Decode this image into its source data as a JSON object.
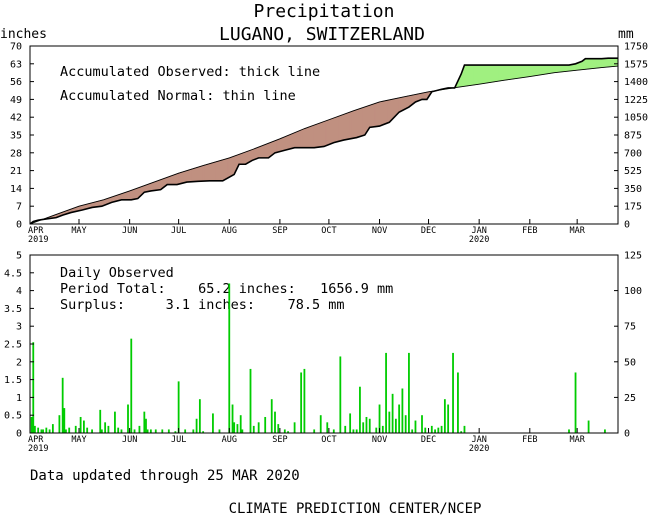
{
  "header": {
    "title": "Precipitation",
    "subtitle": "LUGANO, SWITZERLAND"
  },
  "footer": {
    "updated": "Data updated through 25 MAR 2020",
    "credit": "CLIMATE PREDICTION CENTER/NCEP"
  },
  "chart_data": [
    {
      "type": "area",
      "id": "accumulated",
      "left_unit": "inches",
      "right_unit": "mm",
      "ylim": [
        0,
        70
      ],
      "yticks": [
        0,
        7,
        14,
        21,
        28,
        35,
        42,
        49,
        56,
        63,
        70
      ],
      "right_yticks": [
        0,
        175,
        350,
        525,
        700,
        875,
        1050,
        1225,
        1400,
        1575,
        1750
      ],
      "xlim_days": [
        0,
        360
      ],
      "x_ticks": [
        {
          "label": "APR",
          "sub": "2019",
          "day": 0
        },
        {
          "label": "MAY",
          "sub": "",
          "day": 30
        },
        {
          "label": "JUN",
          "sub": "",
          "day": 61
        },
        {
          "label": "JUL",
          "sub": "",
          "day": 91
        },
        {
          "label": "AUG",
          "sub": "",
          "day": 122
        },
        {
          "label": "SEP",
          "sub": "",
          "day": 153
        },
        {
          "label": "OCT",
          "sub": "",
          "day": 183
        },
        {
          "label": "NOV",
          "sub": "",
          "day": 214
        },
        {
          "label": "DEC",
          "sub": "",
          "day": 244
        },
        {
          "label": "JAN",
          "sub": "2020",
          "day": 275
        },
        {
          "label": "FEB",
          "sub": "",
          "day": 306
        },
        {
          "label": "MAR",
          "sub": "",
          "day": 335
        }
      ],
      "annotations": [
        "Accumulated Observed: thick line",
        "Accumulated Normal: thin line"
      ],
      "surplus_color": "#a0f080",
      "deficit_color": "#c09080",
      "series": [
        {
          "name": "Accumulated Normal",
          "points": [
            [
              0,
              0
            ],
            [
              15,
              3.5
            ],
            [
              30,
              7
            ],
            [
              45,
              9.5
            ],
            [
              61,
              13
            ],
            [
              76,
              16.5
            ],
            [
              91,
              20
            ],
            [
              106,
              23
            ],
            [
              122,
              26
            ],
            [
              137,
              29.5
            ],
            [
              153,
              33.5
            ],
            [
              168,
              37.5
            ],
            [
              183,
              41
            ],
            [
              198,
              44.5
            ],
            [
              214,
              48
            ],
            [
              229,
              50
            ],
            [
              244,
              52
            ],
            [
              259,
              53.5
            ],
            [
              275,
              55
            ],
            [
              290,
              56.5
            ],
            [
              306,
              58
            ],
            [
              321,
              59.5
            ],
            [
              335,
              60.5
            ],
            [
              350,
              61.5
            ],
            [
              360,
              62.1
            ]
          ]
        },
        {
          "name": "Accumulated Observed",
          "points": [
            [
              0,
              0
            ],
            [
              2,
              1
            ],
            [
              5,
              1.5
            ],
            [
              10,
              2
            ],
            [
              16,
              2.5
            ],
            [
              20,
              3.5
            ],
            [
              25,
              4.5
            ],
            [
              32,
              5.5
            ],
            [
              38,
              6.5
            ],
            [
              44,
              7
            ],
            [
              50,
              8.5
            ],
            [
              56,
              9.5
            ],
            [
              62,
              9.5
            ],
            [
              66,
              10
            ],
            [
              70,
              12.5
            ],
            [
              74,
              13
            ],
            [
              80,
              13.5
            ],
            [
              84,
              15.5
            ],
            [
              90,
              15.5
            ],
            [
              96,
              16.5
            ],
            [
              103,
              16.8
            ],
            [
              110,
              17
            ],
            [
              118,
              17
            ],
            [
              125,
              19.5
            ],
            [
              128,
              23.5
            ],
            [
              132,
              23.5
            ],
            [
              136,
              25
            ],
            [
              140,
              26
            ],
            [
              146,
              26
            ],
            [
              150,
              28
            ],
            [
              156,
              29
            ],
            [
              162,
              30
            ],
            [
              168,
              30
            ],
            [
              174,
              30
            ],
            [
              180,
              30.5
            ],
            [
              186,
              32
            ],
            [
              192,
              33
            ],
            [
              196,
              33.5
            ],
            [
              200,
              34
            ],
            [
              205,
              35
            ],
            [
              208,
              38
            ],
            [
              214,
              38.5
            ],
            [
              220,
              40
            ],
            [
              226,
              44
            ],
            [
              232,
              46
            ],
            [
              236,
              48
            ],
            [
              240,
              49
            ],
            [
              243,
              49
            ],
            [
              246,
              52
            ],
            [
              252,
              53
            ],
            [
              256,
              53.5
            ],
            [
              260,
              53.5
            ],
            [
              264,
              59
            ],
            [
              266,
              62.5
            ],
            [
              275,
              62.5
            ],
            [
              290,
              62.5
            ],
            [
              306,
              62.5
            ],
            [
              320,
              62.5
            ],
            [
              330,
              62.5
            ],
            [
              334,
              63
            ],
            [
              338,
              64
            ],
            [
              340,
              65
            ],
            [
              350,
              65
            ],
            [
              354,
              65.2
            ],
            [
              360,
              65.2
            ]
          ]
        }
      ]
    },
    {
      "type": "bar",
      "id": "daily",
      "left_unit": "",
      "right_unit": "",
      "ylim": [
        0,
        5
      ],
      "yticks": [
        0,
        0.5,
        1,
        1.5,
        2,
        2.5,
        3,
        3.5,
        4,
        4.5,
        5
      ],
      "ytick_labels": [
        "0",
        "0.5",
        "1",
        "1.5",
        "2",
        "2.5",
        "3",
        "3.5",
        "4",
        "4.5",
        "5"
      ],
      "right_yticks": [
        0,
        25,
        50,
        75,
        100,
        125
      ],
      "xlim_days": [
        0,
        360
      ],
      "annotations": [
        "Daily Observed",
        "Period Total:    65.2 inches:   1656.9 mm",
        "Surplus:     3.1 inches:    78.5 mm"
      ],
      "bar_color": "#00cc00",
      "days": [
        1,
        2,
        3,
        5,
        7,
        8,
        10,
        12,
        14,
        18,
        20,
        21,
        22,
        24,
        28,
        31,
        33,
        35,
        38,
        43,
        44,
        46,
        48,
        52,
        54,
        56,
        60,
        62,
        64,
        67,
        70,
        71,
        72,
        74,
        77,
        81,
        85,
        89,
        91,
        95,
        100,
        102,
        104,
        106,
        112,
        116,
        122,
        124,
        125,
        127,
        129,
        130,
        135,
        137,
        140,
        144,
        148,
        150,
        152,
        156,
        158,
        162,
        166,
        168,
        174,
        178,
        182,
        186,
        190,
        193,
        196,
        198,
        200,
        202,
        204,
        206,
        208,
        212,
        214,
        216,
        218,
        220,
        222,
        224,
        226,
        228,
        230,
        232,
        234,
        236,
        240,
        242,
        246,
        248,
        250,
        252,
        254,
        256,
        259,
        262,
        264,
        266,
        330,
        334,
        342,
        352
      ],
      "values": [
        0.45,
        2.55,
        0.2,
        0.15,
        0.1,
        0.1,
        0.15,
        0.1,
        0.25,
        0.5,
        1.55,
        0.7,
        0.1,
        0.15,
        0.2,
        0.45,
        0.35,
        0.15,
        0.1,
        0.65,
        0.1,
        0.3,
        0.2,
        0.6,
        0.15,
        0.1,
        0.8,
        2.65,
        0.1,
        0.2,
        0.6,
        0.4,
        0.1,
        0.1,
        0.1,
        0.1,
        0.1,
        0.05,
        1.45,
        0.1,
        0.1,
        0.4,
        0.95,
        0.05,
        0.55,
        0.1,
        4.2,
        0.8,
        0.3,
        0.25,
        0.5,
        0.1,
        1.8,
        0.2,
        0.3,
        0.45,
        0.95,
        0.6,
        0.25,
        0.1,
        0.05,
        0.3,
        1.7,
        1.8,
        0.1,
        0.5,
        0.3,
        0.1,
        2.15,
        0.2,
        0.55,
        0.1,
        0.1,
        1.3,
        0.3,
        0.45,
        0.4,
        0.15,
        0.8,
        0.2,
        2.25,
        0.6,
        1.1,
        0.4,
        0.8,
        1.25,
        0.5,
        2.25,
        0.1,
        0.35,
        0.5,
        0.15,
        0.2,
        0.1,
        0.15,
        0.2,
        0.95,
        0.8,
        2.25,
        1.7,
        0.05,
        0.2,
        0.1,
        1.7,
        0.35,
        0.1
      ]
    }
  ]
}
